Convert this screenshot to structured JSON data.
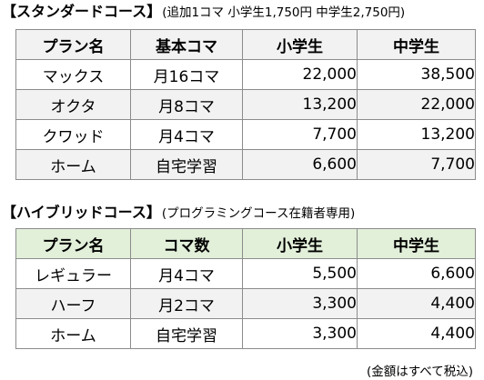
{
  "standard": {
    "title": "【スタンダードコース】",
    "subtitle": "(追加1コマ 小学生1,750円 中学生2,750円)",
    "headers": [
      "プラン名",
      "基本コマ",
      "小学生",
      "中学生"
    ],
    "rows": [
      {
        "name": "マックス",
        "koma": "月16コマ",
        "elem": "22,000",
        "junior": "38,500"
      },
      {
        "name": "オクタ",
        "koma": "月8コマ",
        "elem": "13,200",
        "junior": "22,000"
      },
      {
        "name": "クワッド",
        "koma": "月4コマ",
        "elem": "7,700",
        "junior": "13,200"
      },
      {
        "name": "ホーム",
        "koma": "自宅学習",
        "elem": "6,600",
        "junior": "7,700"
      }
    ]
  },
  "hybrid": {
    "title": "【ハイブリッドコース】",
    "subtitle": "(プログラミングコース在籍者専用)",
    "headers": [
      "プラン名",
      "コマ数",
      "小学生",
      "中学生"
    ],
    "rows": [
      {
        "name": "レギュラー",
        "koma": "月4コマ",
        "elem": "5,500",
        "junior": "6,600"
      },
      {
        "name": "ハーフ",
        "koma": "月2コマ",
        "elem": "3,300",
        "junior": "4,400"
      },
      {
        "name": "ホーム",
        "koma": "自宅学習",
        "elem": "3,300",
        "junior": "4,400"
      }
    ]
  },
  "note": "(金額はすべて税込)",
  "colors": {
    "standard_header_bg": "#f2f2f2",
    "hybrid_header_bg": "#e2efd9",
    "alt_row_bg": "#f2f2f2",
    "border": "#8c8c8c"
  }
}
